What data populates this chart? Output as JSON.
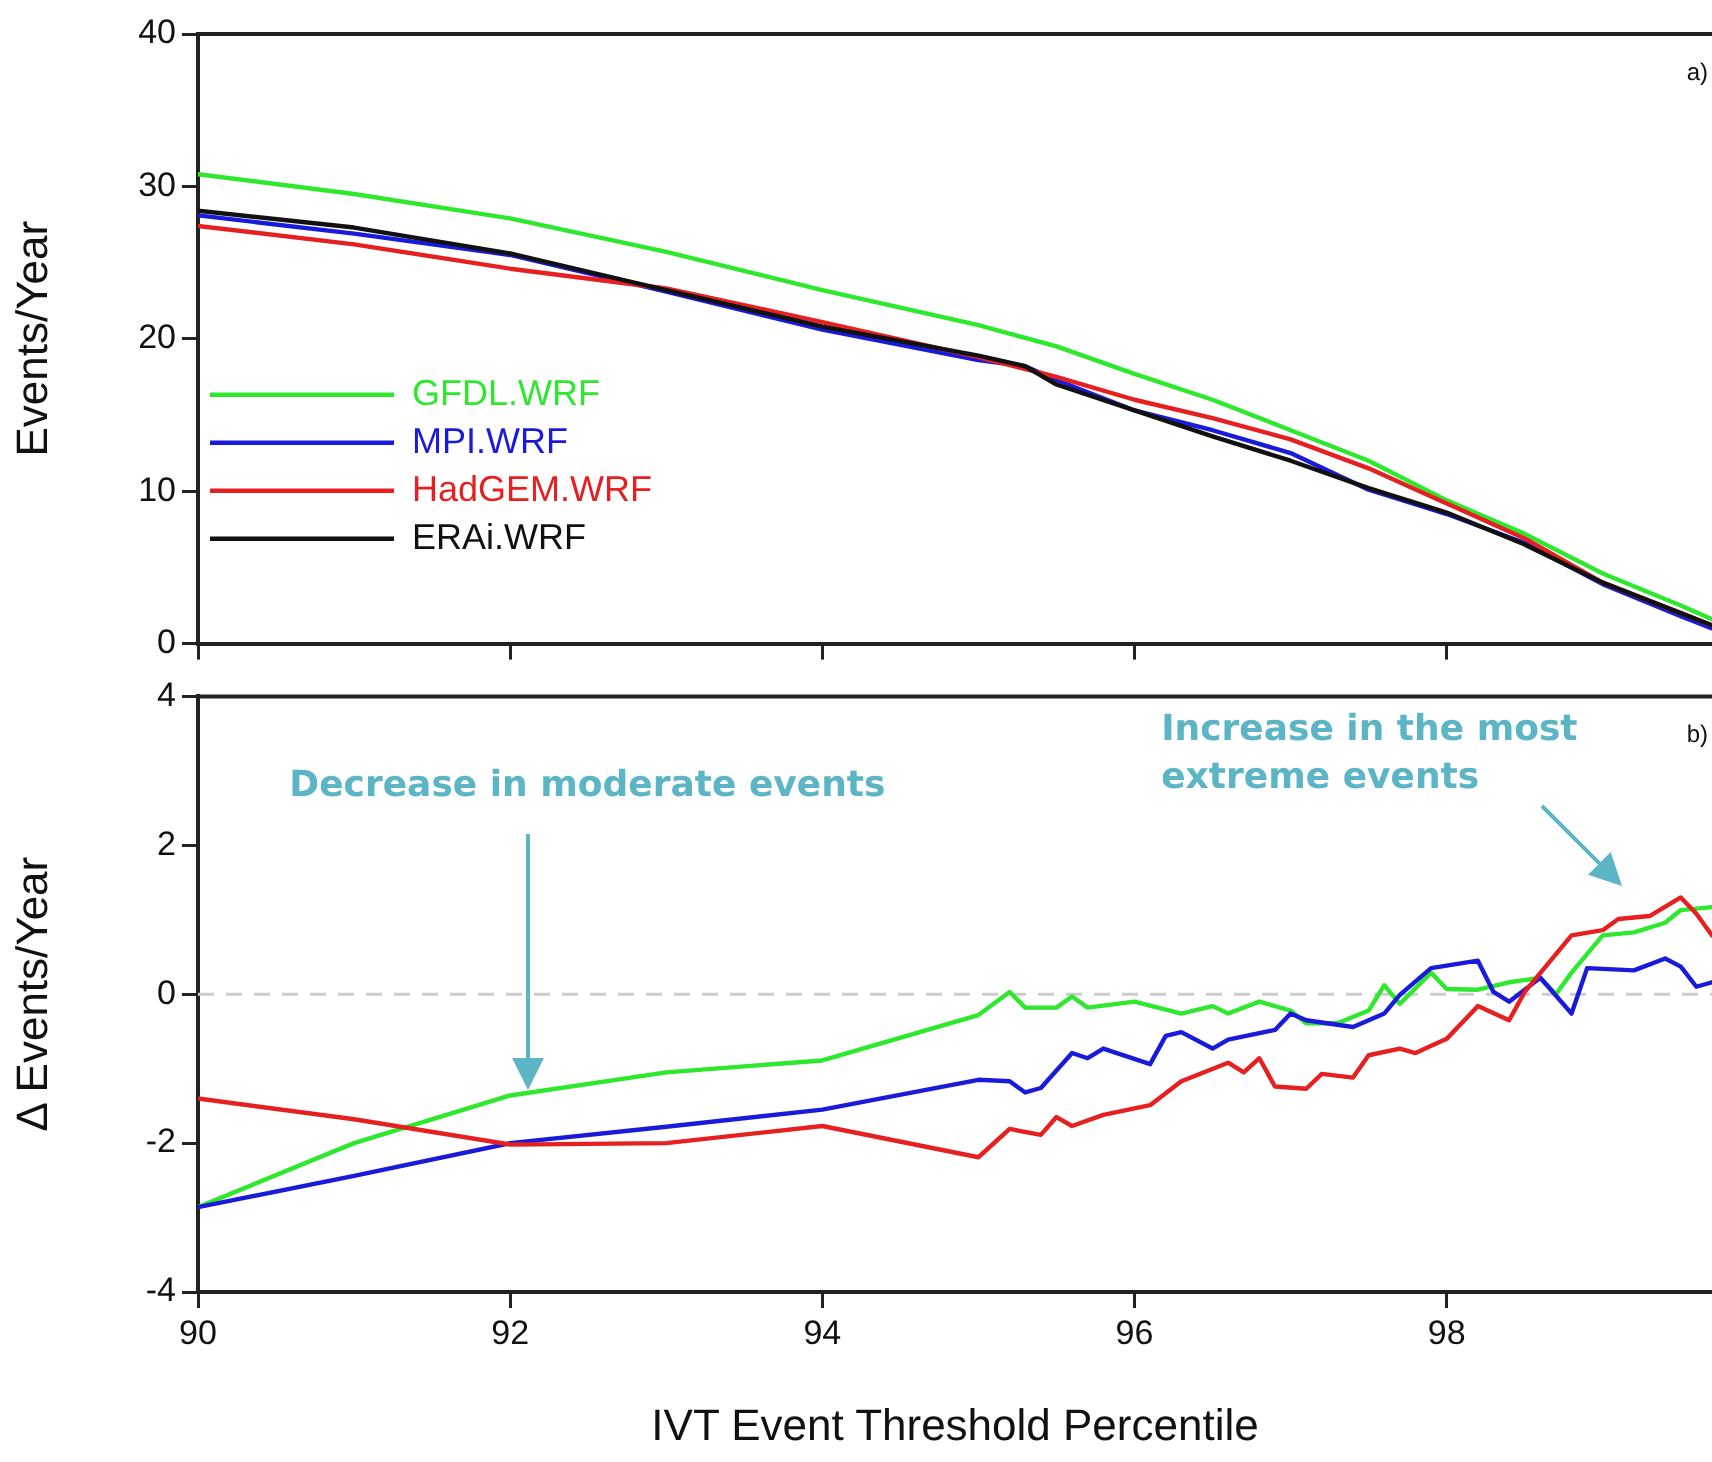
{
  "chart_data": [
    {
      "type": "line",
      "ylabel": "Events/Year",
      "xlim": [
        90,
        99.7
      ],
      "xticks": [
        90,
        92,
        94,
        96,
        98
      ],
      "ylim": [
        0,
        40
      ],
      "yticks": [
        0,
        10,
        20,
        30,
        40
      ],
      "tick_labels": "y",
      "legend": "bottom left",
      "annotations": [
        "a)"
      ],
      "series": [
        {
          "name": "GFDL.WRF",
          "color": "#2ee82e",
          "x": [
            90,
            91,
            92,
            93,
            94,
            95,
            95.5,
            96,
            96.5,
            97,
            97.5,
            98,
            98.5,
            99,
            99.5,
            99.7
          ],
          "values": [
            30.8,
            29.5,
            27.9,
            25.7,
            23.2,
            20.9,
            19.5,
            17.7,
            16.0,
            14.0,
            12.0,
            9.4,
            7.2,
            4.6,
            2.5,
            1.6
          ]
        },
        {
          "name": "MPI.WRF",
          "color": "#1a1adb",
          "x": [
            90,
            91,
            92,
            93,
            94,
            95,
            95.3,
            95.5,
            96,
            96.5,
            97,
            97.5,
            98,
            98.5,
            99,
            99.5,
            99.7
          ],
          "values": [
            28.1,
            26.9,
            25.5,
            23.1,
            20.6,
            18.6,
            18.2,
            17.3,
            15.3,
            14.0,
            12.5,
            10.1,
            8.5,
            6.6,
            3.9,
            1.8,
            1.0
          ]
        },
        {
          "name": "HadGEM.WRF",
          "color": "#e62020",
          "x": [
            90,
            91,
            92,
            93,
            94,
            95,
            95.5,
            96,
            96.5,
            97,
            97.5,
            98,
            98.5,
            99,
            99.5,
            99.7
          ],
          "values": [
            27.4,
            26.2,
            24.6,
            23.3,
            21.1,
            18.8,
            17.5,
            16.0,
            14.8,
            13.4,
            11.5,
            9.2,
            6.9,
            4.0,
            2.0,
            1.2
          ]
        },
        {
          "name": "ERAi.WRF",
          "color": "#111111",
          "x": [
            90,
            91,
            92,
            93,
            94,
            95,
            95.3,
            95.5,
            96,
            96.5,
            97,
            97.5,
            98,
            98.5,
            99,
            99.5,
            99.7
          ],
          "values": [
            28.4,
            27.3,
            25.6,
            23.2,
            20.8,
            18.9,
            18.2,
            17.0,
            15.3,
            13.6,
            12.0,
            10.2,
            8.6,
            6.5,
            4.0,
            2.0,
            1.2
          ]
        }
      ]
    },
    {
      "type": "line",
      "xlabel": "IVT Event Threshold Percentile",
      "ylabel": "Δ Events/Year",
      "xlim": [
        90,
        99.7
      ],
      "xticks": [
        90,
        92,
        94,
        96,
        98
      ],
      "ylim": [
        -4,
        4
      ],
      "yticks": [
        -4,
        -2,
        0,
        2,
        4
      ],
      "ref_lines": [
        {
          "axis": "y",
          "value": 0,
          "color": "#cccccc",
          "line_style": "dashed"
        }
      ],
      "annotations": [
        "Decrease in moderate events",
        "Increase in the most extreme events",
        "b)"
      ],
      "series": [
        {
          "color": "#2ee82e",
          "x": [
            90,
            91,
            92,
            93,
            94,
            95,
            95.2,
            95.3,
            95.5,
            95.6,
            95.7,
            96,
            96.3,
            96.5,
            96.6,
            96.8,
            97,
            97.1,
            97.3,
            97.5,
            97.6,
            97.7,
            97.9,
            98,
            98.2,
            98.4,
            98.6,
            98.7,
            98.8,
            99,
            99.2,
            99.4,
            99.5,
            99.7
          ],
          "values": [
            -2.86,
            -2.0,
            -1.36,
            -1.05,
            -0.89,
            -0.28,
            0.03,
            -0.18,
            -0.18,
            -0.03,
            -0.18,
            -0.1,
            -0.26,
            -0.16,
            -0.26,
            -0.1,
            -0.22,
            -0.39,
            -0.39,
            -0.22,
            0.12,
            -0.13,
            0.29,
            0.07,
            0.06,
            0.16,
            0.22,
            0,
            0.29,
            0.79,
            0.83,
            0.96,
            1.13,
            1.17
          ]
        },
        {
          "color": "#1a1adb",
          "x": [
            90,
            91,
            92,
            93,
            94,
            95,
            95.2,
            95.3,
            95.4,
            95.6,
            95.7,
            95.8,
            96.1,
            96.2,
            96.3,
            96.5,
            96.6,
            96.9,
            97,
            97.1,
            97.4,
            97.6,
            97.7,
            97.9,
            98.2,
            98.3,
            98.4,
            98.6,
            98.8,
            98.9,
            99.2,
            99.4,
            99.5,
            99.6,
            99.7
          ],
          "values": [
            -2.86,
            -2.44,
            -2.0,
            -1.78,
            -1.55,
            -1.15,
            -1.17,
            -1.32,
            -1.26,
            -0.79,
            -0.86,
            -0.73,
            -0.94,
            -0.56,
            -0.51,
            -0.73,
            -0.61,
            -0.48,
            -0.26,
            -0.35,
            -0.44,
            -0.26,
            -0.01,
            0.35,
            0.45,
            0.03,
            -0.1,
            0.22,
            -0.26,
            0.35,
            0.32,
            0.48,
            0.37,
            0.1,
            0.16
          ]
        },
        {
          "color": "#e62020",
          "x": [
            90,
            91,
            92,
            93,
            94,
            95,
            95.2,
            95.4,
            95.5,
            95.6,
            95.8,
            96.1,
            96.3,
            96.6,
            96.7,
            96.8,
            96.9,
            97.1,
            97.2,
            97.4,
            97.5,
            97.7,
            97.8,
            98,
            98.2,
            98.4,
            98.5,
            98.8,
            99,
            99.1,
            99.3,
            99.5,
            99.6,
            99.7
          ],
          "values": [
            -1.4,
            -1.68,
            -2.02,
            -2.0,
            -1.77,
            -2.19,
            -1.81,
            -1.89,
            -1.65,
            -1.77,
            -1.62,
            -1.49,
            -1.17,
            -0.92,
            -1.05,
            -0.86,
            -1.24,
            -1.27,
            -1.07,
            -1.12,
            -0.82,
            -0.73,
            -0.79,
            -0.6,
            -0.16,
            -0.35,
            0.03,
            0.79,
            0.86,
            1.01,
            1.05,
            1.3,
            1.08,
            0.79
          ]
        }
      ]
    }
  ]
}
